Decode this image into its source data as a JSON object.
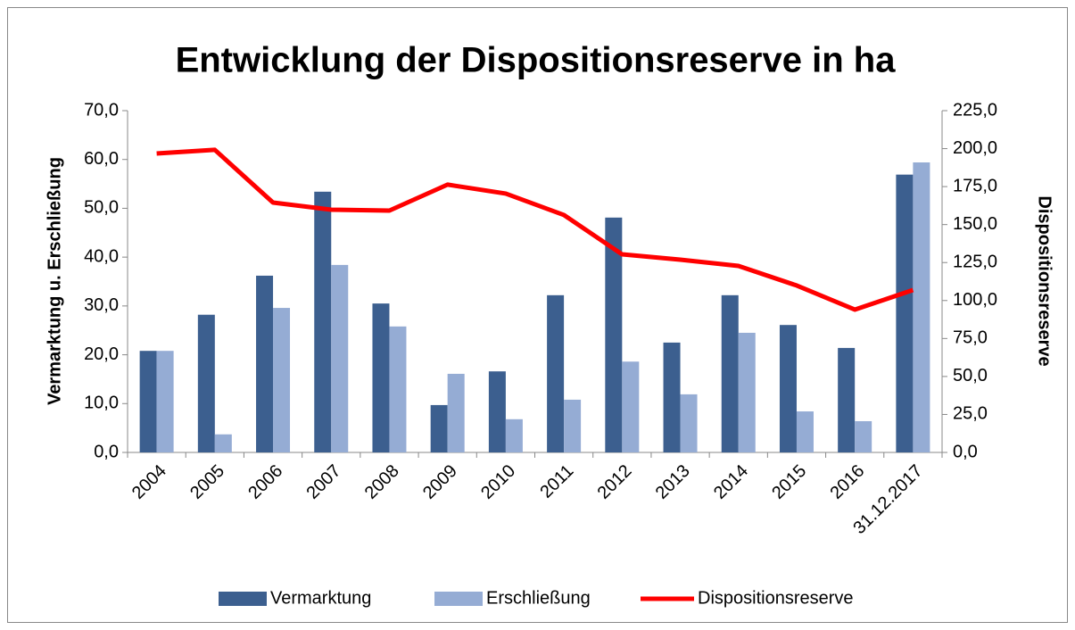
{
  "chart_data": {
    "type": "bar-line",
    "title": "Entwicklung der Dispositionsreserve in ha",
    "y_label": "Vermarktung u. Erschließung",
    "y2_label": "Dispositionsreserve",
    "categories": [
      "2004",
      "2005",
      "2006",
      "2007",
      "2008",
      "2009",
      "2010",
      "2011",
      "2012",
      "2013",
      "2014",
      "2015",
      "2016",
      "31.12.2017"
    ],
    "series": [
      {
        "name": "Vermarktung",
        "type": "bar",
        "color": "#3c5f8f",
        "values": [
          20.8,
          28.2,
          36.2,
          53.4,
          30.5,
          9.7,
          16.6,
          32.2,
          48.1,
          22.5,
          32.2,
          26.1,
          21.4,
          56.9
        ]
      },
      {
        "name": "Erschließung",
        "type": "bar",
        "color": "#95acd4",
        "values": [
          20.8,
          3.7,
          29.6,
          38.4,
          25.8,
          16.1,
          6.8,
          10.8,
          18.6,
          11.9,
          24.5,
          8.4,
          6.4,
          59.4
        ]
      },
      {
        "name": "Dispositionsreserve",
        "type": "line",
        "axis": "y2",
        "color": "#ff0000",
        "values": [
          196.8,
          199.2,
          164.5,
          159.8,
          159.2,
          176.3,
          170.4,
          156.3,
          130.4,
          126.9,
          122.8,
          109.9,
          94.0,
          106.9
        ]
      }
    ],
    "ylim": [
      0,
      70
    ],
    "yticks": [
      {
        "value": 0,
        "label": "0,0"
      },
      {
        "value": 10,
        "label": "10,0"
      },
      {
        "value": 20,
        "label": "20,0"
      },
      {
        "value": 30,
        "label": "30,0"
      },
      {
        "value": 40,
        "label": "40,0"
      },
      {
        "value": 50,
        "label": "50,0"
      },
      {
        "value": 60,
        "label": "60,0"
      },
      {
        "value": 70,
        "label": "70,0"
      }
    ],
    "y2lim": [
      0,
      225
    ],
    "y2ticks": [
      {
        "value": 0,
        "label": "0,0"
      },
      {
        "value": 25,
        "label": "25,0"
      },
      {
        "value": 50,
        "label": "50,0"
      },
      {
        "value": 75,
        "label": "75,0"
      },
      {
        "value": 100,
        "label": "100,0"
      },
      {
        "value": 125,
        "label": "125,0"
      },
      {
        "value": 150,
        "label": "150,0"
      },
      {
        "value": 175,
        "label": "175,0"
      },
      {
        "value": 200,
        "label": "200,0"
      },
      {
        "value": 225,
        "label": "225,0"
      }
    ],
    "grid": false,
    "legend": "bottom"
  }
}
